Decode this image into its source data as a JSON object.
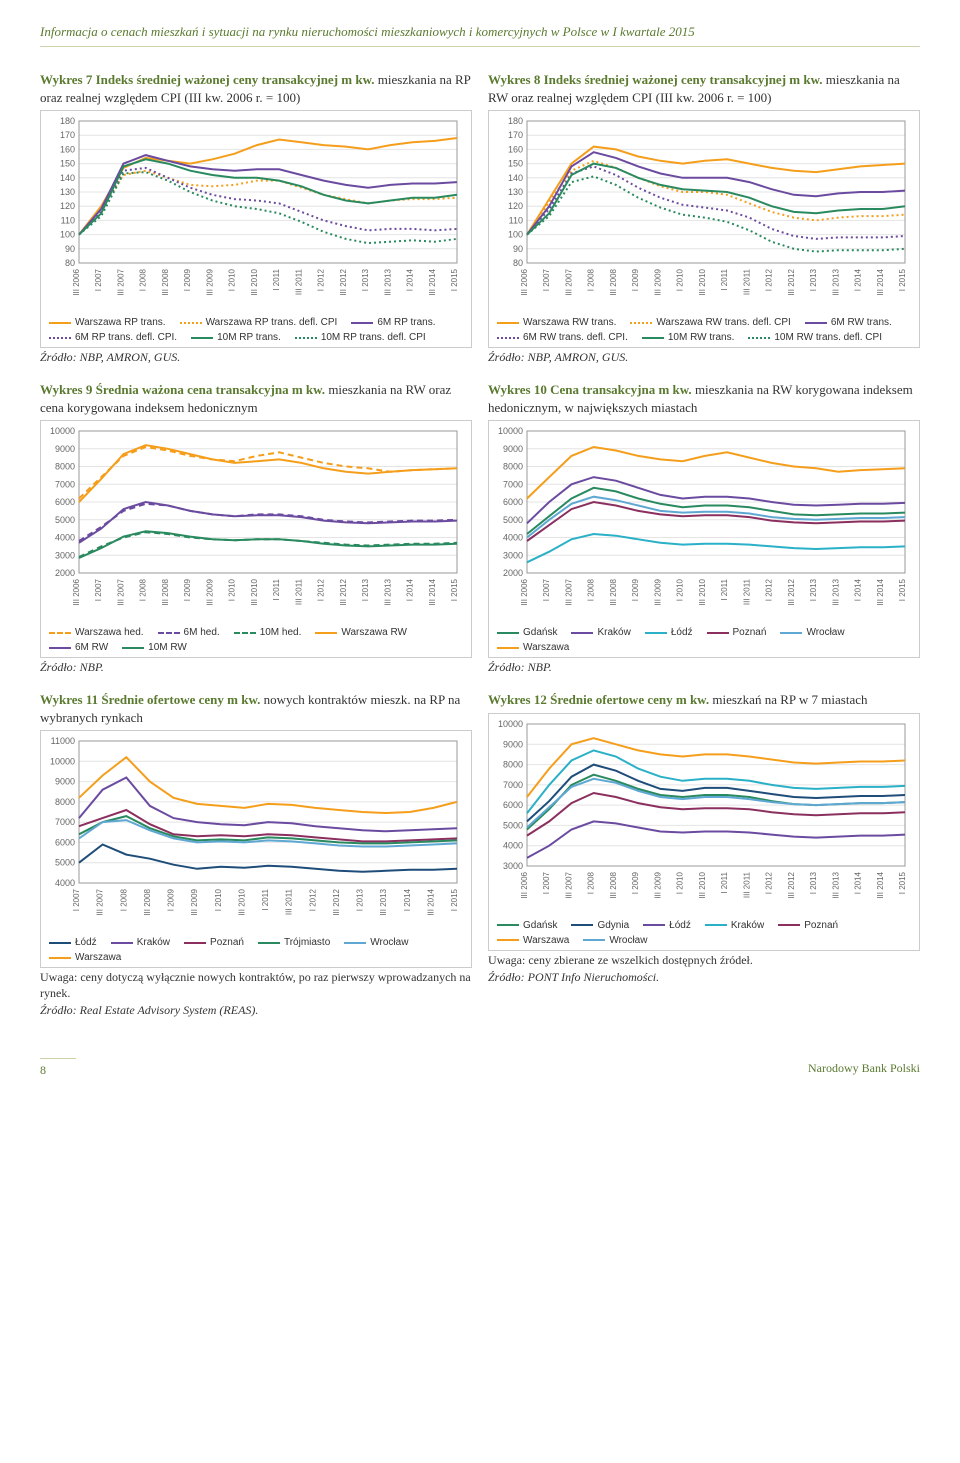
{
  "header": "Informacja o cenach mieszkań i sytuacji na rynku nieruchomości mieszkaniowych i komercyjnych w Polsce w I kwartale 2015",
  "footer": {
    "page": "8",
    "publisher": "Narodowy Bank Polski"
  },
  "quarters": [
    "III 2006",
    "I 2007",
    "III 2007",
    "I 2008",
    "III 2008",
    "I 2009",
    "III 2009",
    "I 2010",
    "III 2010",
    "I 2011",
    "III 2011",
    "I 2012",
    "III 2012",
    "I 2013",
    "III 2013",
    "I 2014",
    "III 2014",
    "I 2015"
  ],
  "quarters2": [
    "I 2007",
    "III 2007",
    "I 2008",
    "III 2008",
    "I 2009",
    "III 2009",
    "I 2010",
    "III 2010",
    "I 2011",
    "III 2011",
    "I 2012",
    "III 2012",
    "I 2013",
    "III 2013",
    "I 2014",
    "III 2014",
    "I 2015"
  ],
  "charts": {
    "w7": {
      "title_bold": "Wykres 7 Indeks średniej ważonej ceny transakcyjnej m kw. ",
      "title_rest": "mieszkania na RP oraz realnej względem CPI (III kw. 2006 r. = 100)",
      "ylim": [
        80,
        180
      ],
      "ystep": 10,
      "series": [
        {
          "name": "Warszawa RP trans.",
          "color": "#f59e1b",
          "style": "solid",
          "data": [
            100,
            120,
            147,
            154,
            152,
            150,
            153,
            157,
            163,
            167,
            165,
            163,
            162,
            160,
            163,
            165,
            166,
            168
          ]
        },
        {
          "name": "Warszawa RP trans. defl. CPI",
          "color": "#f59e1b",
          "style": "dotted",
          "data": [
            100,
            118,
            142,
            145,
            140,
            135,
            134,
            135,
            138,
            138,
            133,
            128,
            125,
            122,
            124,
            125,
            125,
            126
          ]
        },
        {
          "name": "6M RP trans.",
          "color": "#6b4ba0",
          "style": "solid",
          "data": [
            100,
            118,
            150,
            156,
            152,
            148,
            146,
            145,
            146,
            146,
            142,
            138,
            135,
            133,
            135,
            136,
            136,
            137
          ]
        },
        {
          "name": "6M RP trans. defl. CPI.",
          "color": "#6b4ba0",
          "style": "dotted",
          "data": [
            100,
            116,
            145,
            147,
            140,
            133,
            128,
            125,
            124,
            122,
            116,
            110,
            106,
            103,
            104,
            104,
            103,
            104
          ]
        },
        {
          "name": "10M RP trans.",
          "color": "#2a8a5f",
          "style": "solid",
          "data": [
            100,
            115,
            148,
            153,
            150,
            145,
            142,
            140,
            140,
            138,
            134,
            128,
            124,
            122,
            124,
            126,
            126,
            128
          ]
        },
        {
          "name": "10M RP trans. defl. CPI",
          "color": "#2a8a5f",
          "style": "dotted",
          "data": [
            100,
            113,
            143,
            144,
            138,
            130,
            124,
            120,
            118,
            115,
            109,
            102,
            97,
            94,
            95,
            96,
            95,
            97
          ]
        }
      ],
      "source": "Źródło: NBP, AMRON, GUS."
    },
    "w8": {
      "title_bold": "Wykres 8 Indeks średniej ważonej ceny transakcyjnej m kw. ",
      "title_rest": "mieszkania na RW oraz realnej względem CPI (III kw. 2006 r. = 100)",
      "ylim": [
        80,
        180
      ],
      "ystep": 10,
      "series": [
        {
          "name": "Warszawa RW trans.",
          "color": "#f59e1b",
          "style": "solid",
          "data": [
            100,
            125,
            150,
            162,
            160,
            155,
            152,
            150,
            152,
            153,
            150,
            147,
            145,
            144,
            146,
            148,
            149,
            150
          ]
        },
        {
          "name": "Warszawa RW trans. defl. CPI",
          "color": "#f59e1b",
          "style": "dotted",
          "data": [
            100,
            123,
            145,
            152,
            147,
            140,
            134,
            130,
            130,
            128,
            122,
            116,
            112,
            110,
            112,
            113,
            113,
            114
          ]
        },
        {
          "name": "6M RW trans.",
          "color": "#6b4ba0",
          "style": "solid",
          "data": [
            100,
            120,
            148,
            158,
            154,
            148,
            143,
            140,
            140,
            140,
            137,
            132,
            128,
            127,
            129,
            130,
            130,
            131
          ]
        },
        {
          "name": "6M RW trans. defl. CPI.",
          "color": "#6b4ba0",
          "style": "dotted",
          "data": [
            100,
            118,
            143,
            148,
            142,
            133,
            126,
            121,
            119,
            117,
            112,
            104,
            99,
            97,
            98,
            98,
            98,
            99
          ]
        },
        {
          "name": "10M RW trans.",
          "color": "#2a8a5f",
          "style": "solid",
          "data": [
            100,
            115,
            142,
            150,
            147,
            140,
            135,
            132,
            131,
            130,
            126,
            120,
            116,
            115,
            117,
            118,
            118,
            120
          ]
        },
        {
          "name": "10M RW trans. defl. CPI",
          "color": "#2a8a5f",
          "style": "dotted",
          "data": [
            100,
            113,
            137,
            141,
            135,
            126,
            119,
            114,
            112,
            109,
            103,
            95,
            90,
            88,
            89,
            89,
            89,
            90
          ]
        }
      ],
      "source": "Źródło: NBP, AMRON, GUS."
    },
    "w9": {
      "title_bold": "Wykres 9 Średnia ważona cena transakcyjna m kw. ",
      "title_rest": "mieszkania na RW oraz cena korygowana indeksem hedonicznym",
      "ylim": [
        2000,
        10000
      ],
      "ystep": 1000,
      "series": [
        {
          "name": "Warszawa hed.",
          "color": "#f59e1b",
          "style": "dashed",
          "data": [
            6200,
            7400,
            8600,
            9100,
            8900,
            8600,
            8400,
            8300,
            8600,
            8800,
            8500,
            8200,
            8000,
            7900,
            7700,
            7800,
            7850,
            7900
          ]
        },
        {
          "name": "6M hed.",
          "color": "#6b4ba0",
          "style": "dashed",
          "data": [
            3800,
            4600,
            5500,
            5900,
            5800,
            5500,
            5300,
            5200,
            5300,
            5300,
            5200,
            5000,
            4900,
            4850,
            4900,
            4950,
            4950,
            5000
          ]
        },
        {
          "name": "10M hed.",
          "color": "#2a8a5f",
          "style": "dashed",
          "data": [
            2900,
            3500,
            4000,
            4300,
            4200,
            4000,
            3900,
            3850,
            3900,
            3900,
            3800,
            3700,
            3600,
            3550,
            3600,
            3650,
            3650,
            3700
          ]
        },
        {
          "name": "Warszawa RW",
          "color": "#f59e1b",
          "style": "solid",
          "data": [
            6000,
            7300,
            8700,
            9200,
            9000,
            8700,
            8400,
            8200,
            8300,
            8400,
            8200,
            7900,
            7700,
            7600,
            7700,
            7800,
            7850,
            7900
          ]
        },
        {
          "name": "6M RW",
          "color": "#6b4ba0",
          "style": "solid",
          "data": [
            3700,
            4500,
            5600,
            6000,
            5800,
            5500,
            5300,
            5200,
            5250,
            5250,
            5150,
            4950,
            4850,
            4800,
            4850,
            4900,
            4900,
            4950
          ]
        },
        {
          "name": "10M RW",
          "color": "#2a8a5f",
          "style": "solid",
          "data": [
            2850,
            3400,
            4050,
            4350,
            4250,
            4050,
            3900,
            3850,
            3900,
            3900,
            3800,
            3650,
            3550,
            3500,
            3550,
            3600,
            3600,
            3650
          ]
        }
      ],
      "source": "Źródło: NBP."
    },
    "w10": {
      "title_bold": "Wykres 10 Cena transakcyjna m kw. ",
      "title_rest": "mieszkania na RW korygowana indeksem hedonicznym, w największych miastach",
      "ylim": [
        2000,
        10000
      ],
      "ystep": 1000,
      "series": [
        {
          "name": "Gdańsk",
          "color": "#2a8a5f",
          "style": "solid",
          "data": [
            4200,
            5200,
            6200,
            6800,
            6600,
            6200,
            5900,
            5700,
            5800,
            5800,
            5700,
            5500,
            5300,
            5250,
            5300,
            5350,
            5350,
            5400
          ]
        },
        {
          "name": "Kraków",
          "color": "#6b4ba0",
          "style": "solid",
          "data": [
            4800,
            6000,
            7000,
            7400,
            7200,
            6800,
            6400,
            6200,
            6300,
            6300,
            6200,
            6000,
            5850,
            5800,
            5850,
            5900,
            5900,
            5950
          ]
        },
        {
          "name": "Łódź",
          "color": "#2ab0c7",
          "style": "solid",
          "data": [
            2600,
            3200,
            3900,
            4200,
            4100,
            3900,
            3700,
            3600,
            3650,
            3650,
            3600,
            3500,
            3400,
            3350,
            3400,
            3450,
            3450,
            3500
          ]
        },
        {
          "name": "Poznań",
          "color": "#8b2f5e",
          "style": "solid",
          "data": [
            3800,
            4700,
            5600,
            6000,
            5800,
            5500,
            5300,
            5200,
            5250,
            5250,
            5150,
            4950,
            4850,
            4800,
            4850,
            4900,
            4900,
            4950
          ]
        },
        {
          "name": "Wrocław",
          "color": "#5fa8d3",
          "style": "solid",
          "data": [
            4000,
            5000,
            5900,
            6300,
            6100,
            5800,
            5500,
            5400,
            5450,
            5450,
            5350,
            5150,
            5050,
            5000,
            5050,
            5100,
            5100,
            5150
          ]
        },
        {
          "name": "Warszawa",
          "color": "#f59e1b",
          "style": "solid",
          "data": [
            6200,
            7400,
            8600,
            9100,
            8900,
            8600,
            8400,
            8300,
            8600,
            8800,
            8500,
            8200,
            8000,
            7900,
            7700,
            7800,
            7850,
            7900
          ]
        }
      ],
      "source": "Źródło: NBP."
    },
    "w11": {
      "title_bold": "Wykres 11 Średnie ofertowe ceny m kw. ",
      "title_rest": "nowych kontraktów mieszk. na RP na wybranych rynkach",
      "ylim": [
        4000,
        11000
      ],
      "ystep": 1000,
      "xkey": "quarters2",
      "series": [
        {
          "name": "Łódź",
          "color": "#1f4d7a",
          "style": "solid",
          "data": [
            5000,
            5900,
            5400,
            5200,
            4900,
            4700,
            4800,
            4750,
            4850,
            4800,
            4700,
            4600,
            4550,
            4600,
            4650,
            4650,
            4700
          ]
        },
        {
          "name": "Kraków",
          "color": "#6b4ba0",
          "style": "solid",
          "data": [
            7200,
            8600,
            9200,
            7800,
            7200,
            7000,
            6900,
            6850,
            7000,
            6950,
            6800,
            6700,
            6600,
            6550,
            6600,
            6650,
            6700
          ]
        },
        {
          "name": "Poznań",
          "color": "#8b2f5e",
          "style": "solid",
          "data": [
            6800,
            7200,
            7600,
            6900,
            6400,
            6300,
            6350,
            6300,
            6400,
            6350,
            6250,
            6150,
            6050,
            6050,
            6100,
            6150,
            6200
          ]
        },
        {
          "name": "Trójmiasto",
          "color": "#2a8a5f",
          "style": "solid",
          "data": [
            6400,
            7000,
            7300,
            6700,
            6300,
            6100,
            6150,
            6100,
            6250,
            6200,
            6100,
            6000,
            5950,
            5950,
            6000,
            6050,
            6100
          ]
        },
        {
          "name": "Wrocław",
          "color": "#5fa8d3",
          "style": "solid",
          "data": [
            6200,
            7000,
            7100,
            6600,
            6200,
            6000,
            6050,
            6000,
            6100,
            6050,
            5950,
            5850,
            5800,
            5800,
            5850,
            5900,
            5950
          ]
        },
        {
          "name": "Warszawa",
          "color": "#f59e1b",
          "style": "solid",
          "data": [
            8200,
            9300,
            10200,
            9000,
            8200,
            7900,
            7800,
            7700,
            7900,
            7850,
            7700,
            7600,
            7500,
            7450,
            7500,
            7700,
            8000
          ]
        }
      ],
      "note": "Uwaga: ceny dotyczą wyłącznie nowych kontraktów, po raz pierwszy wprowadzanych na rynek.",
      "source": "Źródło: Real Estate Advisory System (REAS)."
    },
    "w12": {
      "title_bold": "Wykres 12 Średnie ofertowe ceny m kw. ",
      "title_rest": "mieszkań na RP w 7 miastach",
      "ylim": [
        3000,
        10000
      ],
      "ystep": 1000,
      "series": [
        {
          "name": "Gdańsk",
          "color": "#2a8a5f",
          "style": "solid",
          "data": [
            4800,
            5800,
            7000,
            7500,
            7200,
            6800,
            6500,
            6400,
            6500,
            6500,
            6400,
            6200,
            6050,
            6000,
            6050,
            6100,
            6100,
            6150
          ]
        },
        {
          "name": "Gdynia",
          "color": "#1f4d7a",
          "style": "solid",
          "data": [
            5200,
            6200,
            7400,
            8000,
            7700,
            7200,
            6800,
            6700,
            6850,
            6850,
            6700,
            6550,
            6400,
            6350,
            6400,
            6450,
            6450,
            6500
          ]
        },
        {
          "name": "Łódź",
          "color": "#6b4ba0",
          "style": "solid",
          "data": [
            3400,
            4000,
            4800,
            5200,
            5100,
            4900,
            4700,
            4650,
            4700,
            4700,
            4650,
            4550,
            4450,
            4400,
            4450,
            4500,
            4500,
            4550
          ]
        },
        {
          "name": "Kraków",
          "color": "#2ab0c7",
          "style": "solid",
          "data": [
            5600,
            7000,
            8200,
            8700,
            8400,
            7800,
            7400,
            7200,
            7300,
            7300,
            7200,
            7000,
            6850,
            6800,
            6850,
            6900,
            6900,
            6950
          ]
        },
        {
          "name": "Poznań",
          "color": "#8b2f5e",
          "style": "solid",
          "data": [
            4500,
            5200,
            6100,
            6600,
            6400,
            6100,
            5900,
            5800,
            5850,
            5850,
            5800,
            5650,
            5550,
            5500,
            5550,
            5600,
            5600,
            5650
          ]
        },
        {
          "name": "Warszawa",
          "color": "#f59e1b",
          "style": "solid",
          "data": [
            6400,
            7800,
            9000,
            9300,
            9000,
            8700,
            8500,
            8400,
            8500,
            8500,
            8400,
            8250,
            8100,
            8050,
            8100,
            8150,
            8150,
            8200
          ]
        },
        {
          "name": "Wrocław",
          "color": "#5fa8d3",
          "style": "solid",
          "data": [
            4900,
            5900,
            6900,
            7300,
            7100,
            6700,
            6400,
            6300,
            6400,
            6400,
            6300,
            6150,
            6050,
            6000,
            6050,
            6100,
            6100,
            6150
          ]
        }
      ],
      "note": "Uwaga: ceny zbierane ze wszelkich dostępnych źródeł.",
      "source": "Źródło: PONT Info Nieruchomości."
    }
  }
}
